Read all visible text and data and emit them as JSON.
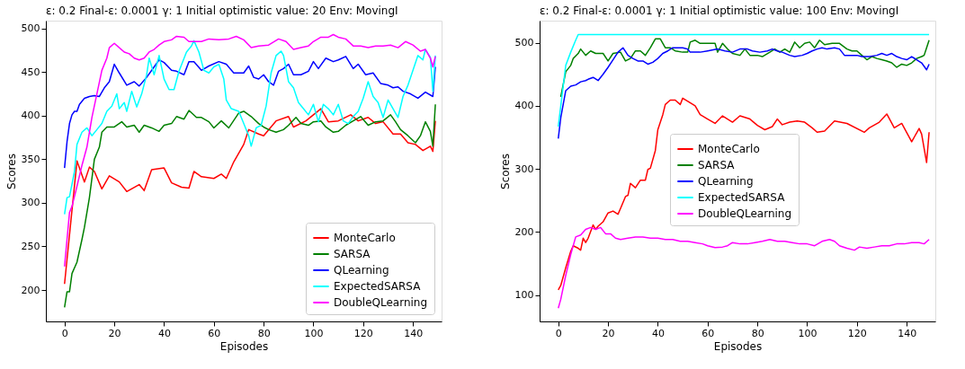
{
  "chart_data": [
    {
      "type": "line",
      "title": "ε: 0.2    Final-ε: 0.0001    γ: 1    Initial optimistic value: 20    Env: MovingI",
      "xlabel": "Episodes",
      "ylabel": "Scores",
      "xlim": [
        -7.5,
        151.5
      ],
      "ylim": [
        164,
        509
      ],
      "xticks": [
        0,
        20,
        40,
        60,
        80,
        100,
        120,
        140
      ],
      "yticks": [
        200,
        250,
        300,
        350,
        400,
        450,
        500
      ],
      "grid": false,
      "legend": "bottom right",
      "line_style": "solid",
      "marker": "none",
      "series": [
        {
          "name": "MonteCarlo",
          "color": "#ff0000",
          "x": [
            0,
            5,
            8,
            10,
            12,
            15,
            18,
            22,
            25,
            30,
            32,
            35,
            40,
            43,
            47,
            50,
            52,
            55,
            60,
            63,
            65,
            68,
            72,
            74,
            78,
            80,
            85,
            90,
            92,
            97,
            103,
            106,
            110,
            115,
            118,
            122,
            125,
            128,
            132,
            135,
            138,
            141,
            144,
            147,
            148,
            149
          ],
          "values": [
            207,
            348,
            324,
            341,
            336,
            316,
            331,
            324,
            313,
            321,
            314,
            338,
            340,
            323,
            318,
            317,
            336,
            330,
            328,
            333,
            328,
            347,
            367,
            384,
            379,
            377,
            394,
            399,
            387,
            394,
            408,
            393,
            394,
            401,
            394,
            398,
            391,
            393,
            379,
            379,
            369,
            367,
            360,
            365,
            359,
            394
          ]
        },
        {
          "name": "SARSA",
          "color": "#008000",
          "x": [
            0,
            1,
            2,
            3,
            5,
            7,
            8,
            10,
            12,
            14,
            15,
            17,
            20,
            23,
            25,
            28,
            30,
            32,
            35,
            38,
            40,
            43,
            45,
            48,
            50,
            53,
            55,
            58,
            60,
            63,
            66,
            70,
            72,
            75,
            78,
            80,
            82,
            85,
            88,
            90,
            93,
            95,
            98,
            100,
            103,
            105,
            108,
            110,
            113,
            116,
            119,
            122,
            125,
            128,
            131,
            133,
            135,
            138,
            141,
            143,
            145,
            147,
            148,
            149
          ],
          "values": [
            180,
            198,
            198,
            219,
            232,
            258,
            272,
            306,
            350,
            364,
            381,
            387,
            387,
            393,
            387,
            389,
            381,
            389,
            386,
            382,
            389,
            391,
            399,
            396,
            406,
            398,
            398,
            393,
            386,
            394,
            386,
            403,
            405,
            399,
            391,
            387,
            384,
            381,
            384,
            389,
            398,
            391,
            389,
            393,
            394,
            387,
            381,
            382,
            389,
            394,
            399,
            389,
            393,
            394,
            401,
            393,
            384,
            377,
            369,
            377,
            393,
            382,
            365,
            413
          ]
        },
        {
          "name": "QLearning",
          "color": "#0000ff",
          "x": [
            0,
            1,
            2,
            3,
            4,
            5,
            6,
            8,
            10,
            12,
            14,
            16,
            18,
            20,
            22,
            25,
            28,
            30,
            33,
            36,
            38,
            40,
            43,
            45,
            48,
            50,
            52,
            55,
            58,
            62,
            65,
            68,
            72,
            74,
            76,
            78,
            80,
            82,
            84,
            86,
            88,
            90,
            92,
            95,
            98,
            100,
            102,
            105,
            108,
            110,
            113,
            116,
            118,
            121,
            124,
            127,
            130,
            132,
            134,
            136,
            139,
            142,
            145,
            148,
            149
          ],
          "values": [
            340,
            370,
            391,
            401,
            405,
            405,
            413,
            420,
            422,
            423,
            422,
            432,
            439,
            459,
            449,
            435,
            439,
            434,
            444,
            456,
            464,
            461,
            452,
            451,
            447,
            462,
            462,
            452,
            457,
            462,
            459,
            449,
            449,
            457,
            444,
            442,
            447,
            439,
            435,
            451,
            454,
            459,
            447,
            447,
            451,
            462,
            454,
            466,
            462,
            464,
            468,
            454,
            459,
            447,
            449,
            437,
            435,
            432,
            433,
            428,
            425,
            420,
            427,
            422,
            456
          ]
        },
        {
          "name": "ExpectedSARSA",
          "color": "#00ffff",
          "x": [
            0,
            1,
            2,
            4,
            5,
            7,
            9,
            11,
            13,
            15,
            17,
            19,
            21,
            22,
            24,
            25,
            27,
            29,
            31,
            33,
            34,
            36,
            38,
            40,
            42,
            44,
            46,
            49,
            51,
            52,
            54,
            56,
            58,
            60,
            62,
            64,
            65,
            67,
            70,
            72,
            74,
            75,
            77,
            79,
            81,
            83,
            85,
            87,
            88,
            90,
            92,
            94,
            96,
            98,
            100,
            102,
            104,
            106,
            108,
            110,
            112,
            114,
            116,
            118,
            120,
            122,
            124,
            126,
            128,
            130,
            132,
            134,
            136,
            138,
            140,
            142,
            144,
            145,
            147,
            148,
            149
          ],
          "values": [
            287,
            306,
            307,
            336,
            367,
            381,
            386,
            377,
            384,
            391,
            405,
            411,
            425,
            408,
            415,
            405,
            428,
            410,
            425,
            447,
            466,
            447,
            469,
            442,
            430,
            430,
            451,
            473,
            480,
            486,
            473,
            452,
            449,
            456,
            459,
            442,
            418,
            408,
            405,
            391,
            377,
            365,
            386,
            389,
            411,
            449,
            469,
            474,
            469,
            439,
            432,
            415,
            408,
            401,
            413,
            393,
            413,
            408,
            401,
            413,
            394,
            391,
            399,
            405,
            420,
            439,
            422,
            415,
            398,
            418,
            408,
            398,
            422,
            435,
            452,
            469,
            464,
            476,
            467,
            428,
            469
          ]
        },
        {
          "name": "DoubleQLearning",
          "color": "#ff00ff",
          "x": [
            0,
            2,
            3,
            5,
            7,
            9,
            11,
            13,
            15,
            17,
            18,
            20,
            22,
            24,
            26,
            28,
            30,
            32,
            34,
            36,
            38,
            40,
            43,
            45,
            48,
            50,
            55,
            58,
            62,
            66,
            69,
            72,
            75,
            78,
            82,
            86,
            89,
            92,
            95,
            98,
            100,
            103,
            106,
            108,
            110,
            113,
            116,
            119,
            122,
            125,
            128,
            131,
            134,
            137,
            140,
            143,
            145,
            147,
            148,
            149
          ],
          "values": [
            227,
            289,
            296,
            319,
            343,
            364,
            398,
            425,
            452,
            466,
            478,
            483,
            478,
            473,
            471,
            466,
            464,
            466,
            473,
            476,
            481,
            485,
            487,
            491,
            490,
            485,
            485,
            488,
            487,
            488,
            491,
            487,
            478,
            480,
            481,
            488,
            485,
            476,
            478,
            480,
            485,
            490,
            490,
            493,
            490,
            488,
            480,
            480,
            478,
            480,
            480,
            481,
            478,
            485,
            481,
            474,
            476,
            466,
            456,
            468
          ]
        }
      ]
    },
    {
      "type": "line",
      "title": "ε: 0.2    Final-ε: 0.0001    γ: 1    Initial optimistic value: 100    Env: MovingI",
      "xlabel": "Episodes",
      "ylabel": "Scores",
      "xlim": [
        -7.5,
        151.5
      ],
      "ylim": [
        58,
        535
      ],
      "xticks": [
        0,
        20,
        40,
        60,
        80,
        100,
        120,
        140
      ],
      "yticks": [
        100,
        200,
        300,
        400,
        500
      ],
      "grid": false,
      "legend": "center",
      "line_style": "solid",
      "marker": "none",
      "series": [
        {
          "name": "MonteCarlo",
          "color": "#ff0000",
          "x": [
            0,
            1,
            3,
            5,
            6,
            8,
            9,
            10,
            11,
            12,
            14,
            15,
            16,
            18,
            20,
            22,
            24,
            25,
            27,
            28,
            29,
            31,
            33,
            35,
            36,
            37,
            39,
            40,
            42,
            43,
            45,
            47,
            49,
            50,
            55,
            57,
            60,
            63,
            66,
            70,
            73,
            77,
            80,
            83,
            86,
            88,
            90,
            93,
            96,
            99,
            102,
            104,
            107,
            111,
            116,
            123,
            125,
            129,
            132,
            135,
            138,
            142,
            145,
            146,
            148,
            149
          ],
          "values": [
            108,
            115,
            143,
            169,
            178,
            174,
            171,
            190,
            183,
            190,
            211,
            204,
            209,
            216,
            230,
            233,
            228,
            237,
            256,
            258,
            277,
            270,
            282,
            282,
            299,
            301,
            329,
            362,
            386,
            402,
            409,
            409,
            402,
            412,
            400,
            386,
            379,
            372,
            384,
            374,
            384,
            379,
            369,
            362,
            367,
            379,
            370,
            374,
            376,
            374,
            365,
            358,
            360,
            376,
            372,
            358,
            365,
            374,
            387,
            365,
            372,
            343,
            364,
            355,
            310,
            358
          ]
        },
        {
          "name": "SARSA",
          "color": "#008000",
          "x": [
            1,
            3,
            5,
            6,
            8,
            9,
            11,
            13,
            15,
            18,
            20,
            22,
            25,
            27,
            29,
            31,
            33,
            35,
            37,
            39,
            41,
            43,
            45,
            47,
            50,
            52,
            53,
            55,
            57,
            60,
            63,
            64,
            66,
            68,
            70,
            73,
            75,
            77,
            80,
            82,
            85,
            87,
            89,
            91,
            93,
            95,
            97,
            99,
            101,
            103,
            105,
            107,
            110,
            113,
            116,
            118,
            120,
            122,
            124,
            126,
            128,
            130,
            132,
            134,
            136,
            138,
            140,
            142,
            144,
            146,
            147,
            148,
            149
          ],
          "values": [
            414,
            454,
            464,
            475,
            483,
            490,
            480,
            487,
            483,
            483,
            471,
            483,
            485,
            471,
            475,
            487,
            487,
            480,
            492,
            506,
            506,
            492,
            492,
            487,
            485,
            485,
            501,
            504,
            499,
            499,
            499,
            485,
            499,
            490,
            483,
            480,
            490,
            480,
            480,
            478,
            485,
            490,
            485,
            490,
            485,
            501,
            492,
            499,
            501,
            492,
            504,
            497,
            499,
            499,
            490,
            487,
            487,
            480,
            473,
            478,
            475,
            473,
            471,
            468,
            461,
            466,
            464,
            468,
            475,
            478,
            480,
            492,
            504
          ]
        },
        {
          "name": "QLearning",
          "color": "#0000ff",
          "x": [
            0,
            1,
            3,
            5,
            7,
            9,
            11,
            12,
            14,
            16,
            18,
            20,
            22,
            24,
            26,
            28,
            30,
            32,
            34,
            36,
            38,
            40,
            42,
            44,
            46,
            48,
            50,
            52,
            53,
            57,
            60,
            64,
            67,
            70,
            73,
            76,
            78,
            81,
            84,
            86,
            88,
            90,
            93,
            95,
            98,
            100,
            102,
            104,
            106,
            108,
            111,
            113,
            115,
            118,
            120,
            122,
            125,
            128,
            130,
            132,
            134,
            136,
            138,
            140,
            142,
            144,
            146,
            148,
            149
          ],
          "values": [
            348,
            381,
            424,
            431,
            433,
            438,
            440,
            442,
            445,
            440,
            450,
            461,
            473,
            485,
            492,
            480,
            475,
            471,
            471,
            466,
            469,
            475,
            483,
            487,
            492,
            492,
            492,
            490,
            485,
            485,
            487,
            490,
            487,
            485,
            490,
            490,
            487,
            485,
            487,
            490,
            487,
            485,
            480,
            478,
            480,
            483,
            487,
            490,
            492,
            490,
            492,
            490,
            480,
            480,
            480,
            478,
            478,
            480,
            483,
            480,
            483,
            478,
            475,
            473,
            478,
            473,
            468,
            457,
            466
          ]
        },
        {
          "name": "ExpectedSARSA",
          "color": "#00ffff",
          "x": [
            0,
            1,
            3,
            5,
            7,
            8,
            149
          ],
          "values": [
            367,
            400,
            464,
            485,
            504,
            513,
            513
          ]
        },
        {
          "name": "DoubleQLearning",
          "color": "#ff00ff",
          "x": [
            0,
            1,
            3,
            5,
            7,
            9,
            11,
            13,
            15,
            17,
            19,
            21,
            23,
            25,
            28,
            31,
            34,
            37,
            40,
            43,
            46,
            49,
            52,
            55,
            58,
            60,
            63,
            66,
            68,
            70,
            73,
            76,
            79,
            82,
            85,
            88,
            91,
            94,
            97,
            100,
            103,
            106,
            109,
            111,
            113,
            116,
            119,
            121,
            124,
            127,
            130,
            133,
            136,
            139,
            142,
            145,
            147,
            149
          ],
          "values": [
            79,
            93,
            131,
            164,
            192,
            195,
            204,
            207,
            204,
            207,
            197,
            197,
            190,
            188,
            190,
            192,
            192,
            190,
            190,
            188,
            188,
            185,
            185,
            183,
            181,
            178,
            175,
            176,
            178,
            183,
            181,
            181,
            183,
            185,
            188,
            185,
            185,
            183,
            181,
            181,
            178,
            185,
            188,
            185,
            178,
            174,
            171,
            176,
            174,
            176,
            178,
            178,
            181,
            181,
            183,
            183,
            181,
            188
          ]
        }
      ]
    }
  ]
}
